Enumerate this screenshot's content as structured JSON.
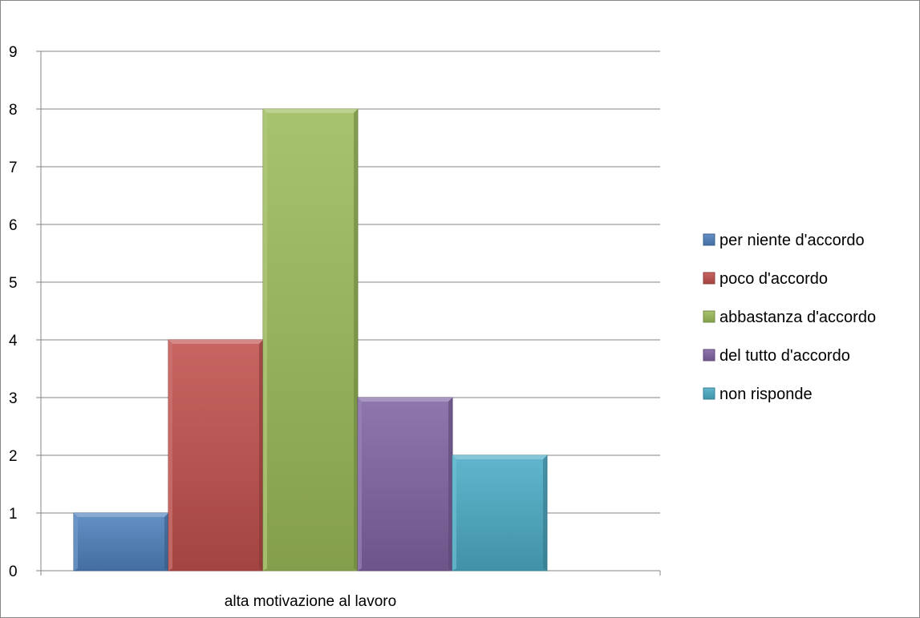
{
  "chart_data": {
    "type": "bar",
    "categories": [
      "alta motivazione al lavoro"
    ],
    "series": [
      {
        "name": "per niente d'accordo",
        "values": [
          1
        ],
        "color": "#4F81BD"
      },
      {
        "name": "poco d'accordo",
        "values": [
          4
        ],
        "color": "#C0504D"
      },
      {
        "name": "abbastanza d'accordo",
        "values": [
          8
        ],
        "color": "#9BBB59"
      },
      {
        "name": "del tutto d'accordo",
        "values": [
          3
        ],
        "color": "#8064A2"
      },
      {
        "name": "non risponde",
        "values": [
          2
        ],
        "color": "#4BACC6"
      }
    ],
    "ylim": [
      0,
      9
    ],
    "yticks": [
      0,
      1,
      2,
      3,
      4,
      5,
      6,
      7,
      8,
      9
    ],
    "grid": true,
    "legend_position": "right"
  }
}
